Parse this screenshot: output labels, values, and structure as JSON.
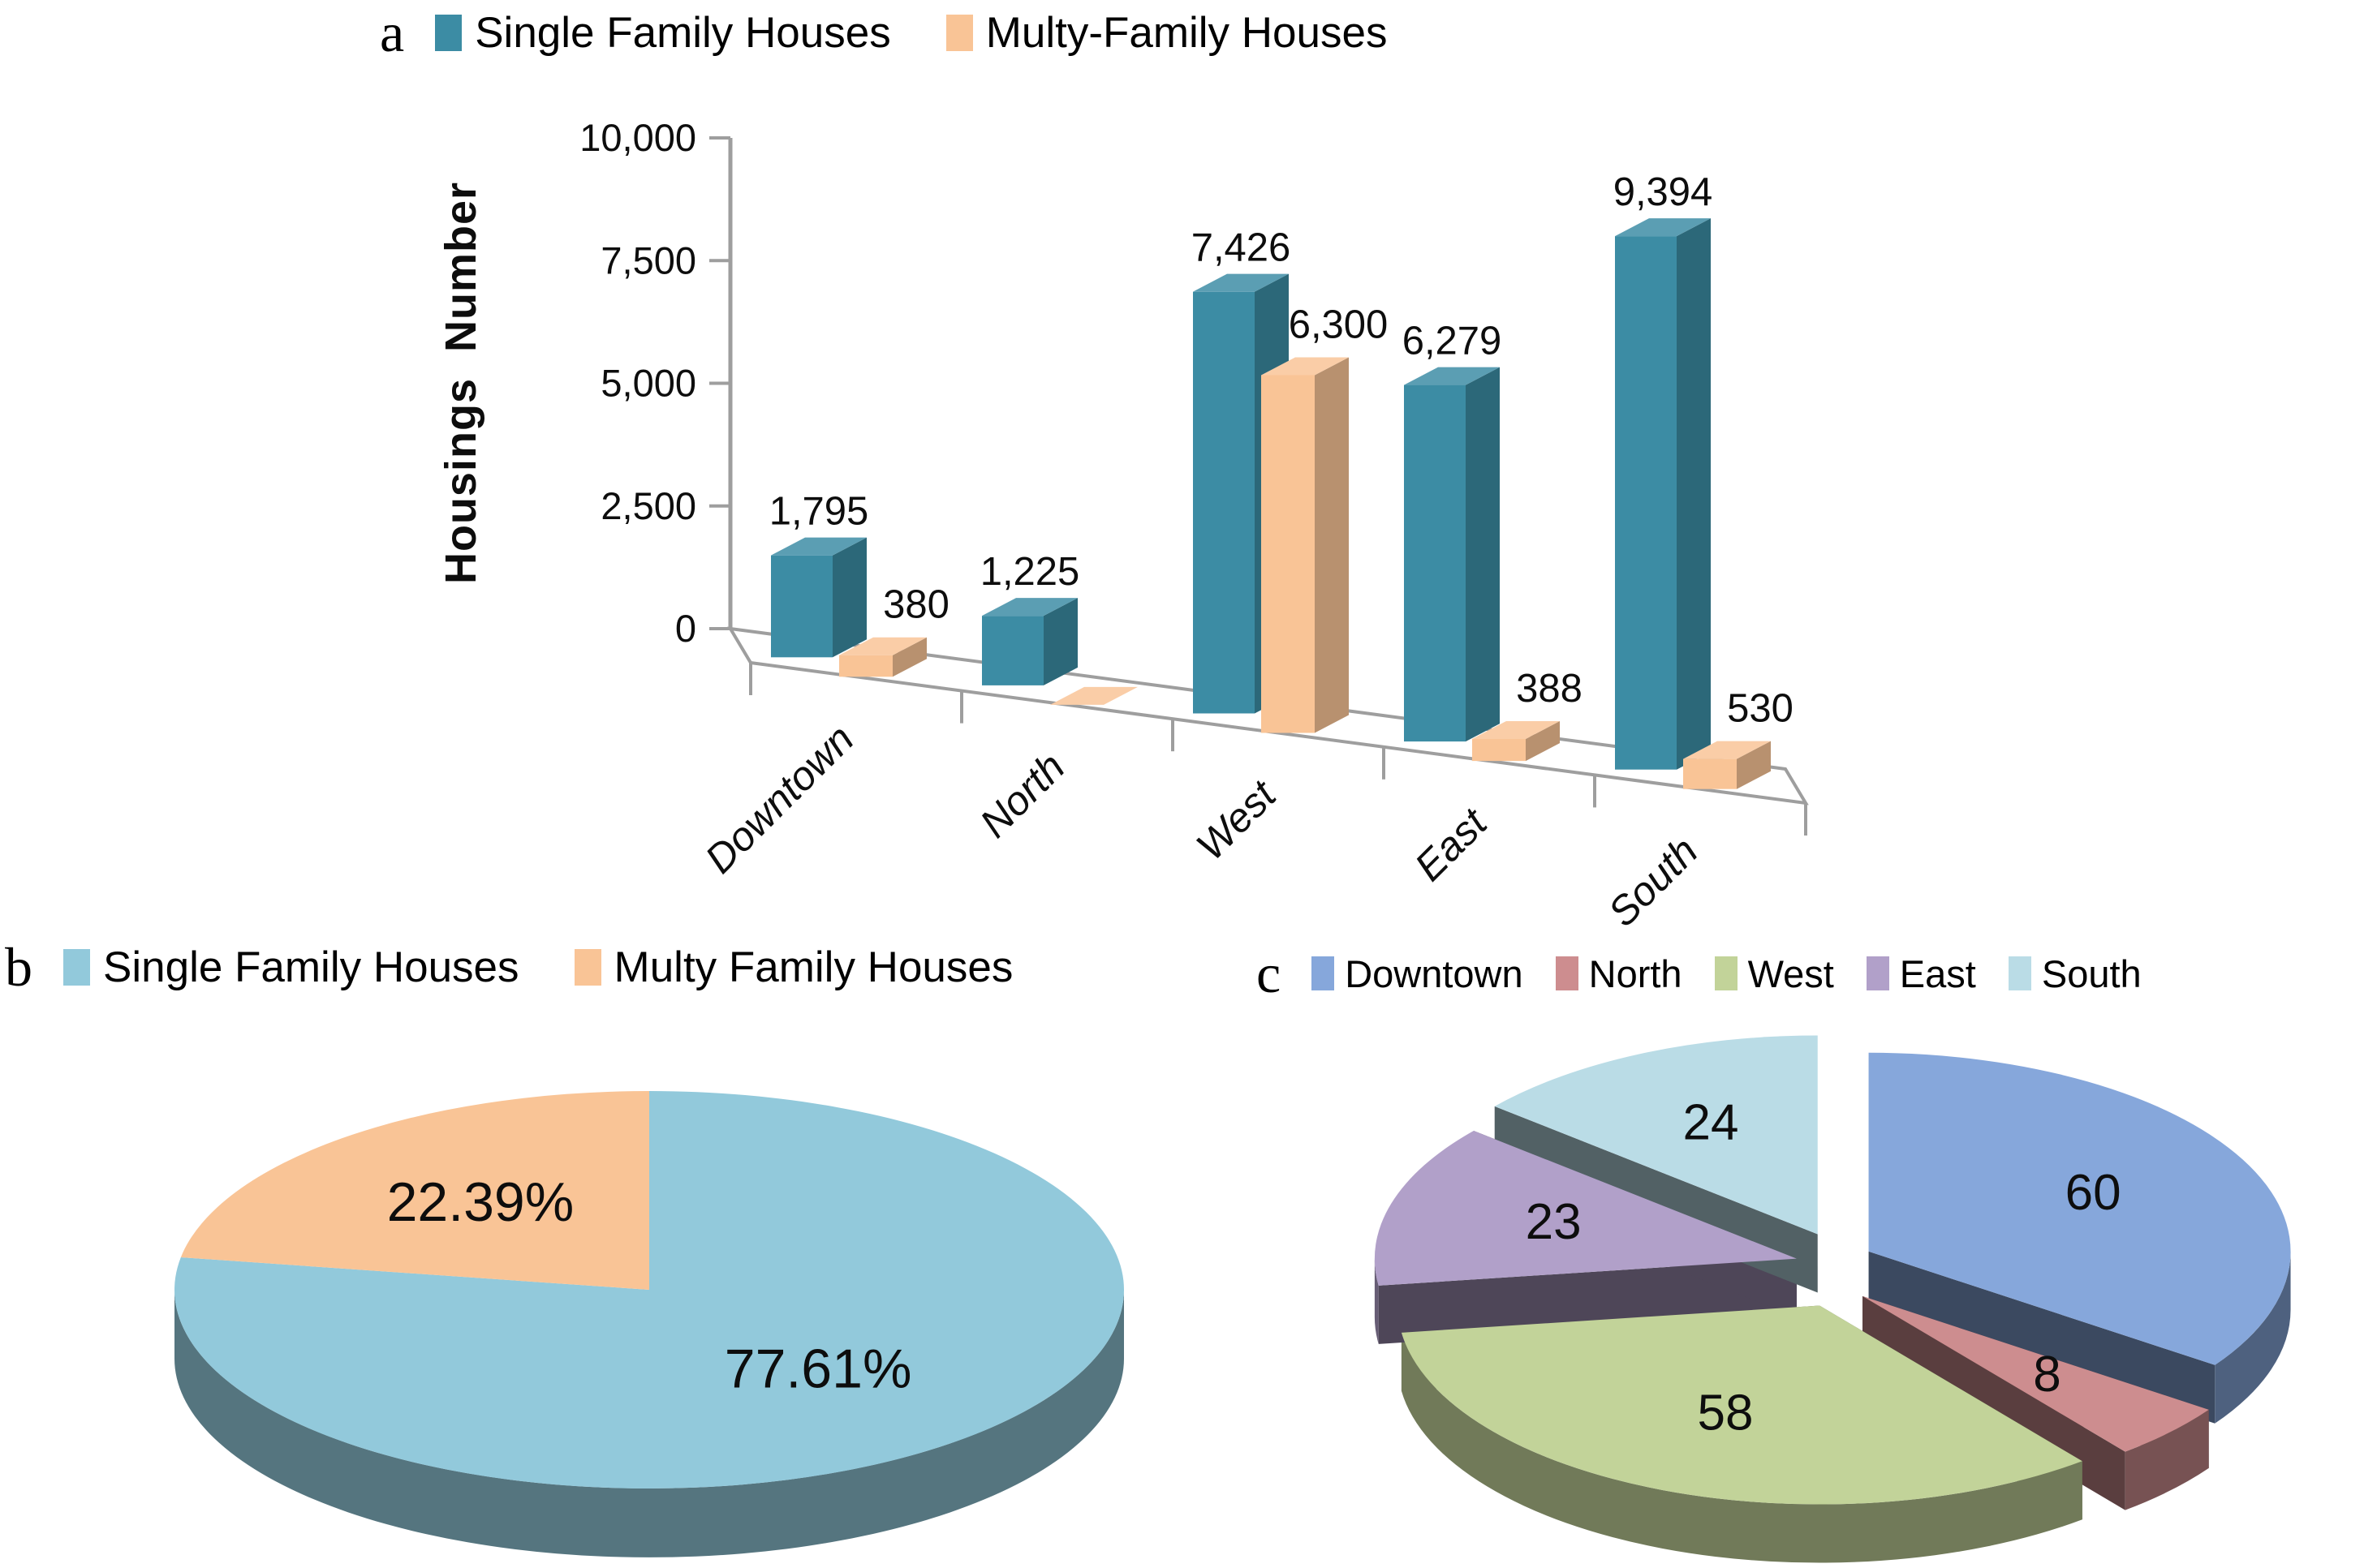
{
  "figure": {
    "panel_a": {
      "panel_label": "a",
      "legend": [
        {
          "label": "Single Family Houses",
          "color": "#3C8CA4"
        },
        {
          "label": "Multy-Family Houses",
          "color": "#F9C496"
        }
      ],
      "y_axis_title": "Housings Number"
    },
    "panel_b": {
      "panel_label": "b",
      "legend": [
        {
          "label": "Single Family Houses",
          "color": "#92C9DB"
        },
        {
          "label": "Multy Family Houses",
          "color": "#F9C496"
        }
      ]
    },
    "panel_c": {
      "panel_label": "c",
      "legend": [
        {
          "label": "Downtown",
          "color": "#86A7DB"
        },
        {
          "label": "North",
          "color": "#CD8D8F"
        },
        {
          "label": "West",
          "color": "#C2D399"
        },
        {
          "label": "East",
          "color": "#B1A0C9"
        },
        {
          "label": "South",
          "color": "#BADCE6"
        }
      ]
    }
  },
  "chart_data": [
    {
      "id": "a",
      "type": "bar",
      "projection": "3d",
      "title": "",
      "xlabel": "",
      "ylabel": "Housings Number",
      "ylim": [
        0,
        10000
      ],
      "grid": false,
      "legend_position": "top",
      "categories": [
        "Downtown",
        "North",
        "West",
        "East",
        "South"
      ],
      "yticks": [
        {
          "value": 0,
          "label": "0"
        },
        {
          "value": 2500,
          "label": "2,500"
        },
        {
          "value": 5000,
          "label": "5,000"
        },
        {
          "value": 7500,
          "label": "7,500"
        },
        {
          "value": 10000,
          "label": "10,000"
        }
      ],
      "series": [
        {
          "name": "Single Family Houses",
          "color": "#3C8CA4",
          "values": [
            1795,
            1225,
            7426,
            6279,
            9394
          ],
          "labels": [
            "1,795",
            "1,225",
            "7,426",
            "6,279",
            "9,394"
          ]
        },
        {
          "name": "Multy-Family Houses",
          "color": "#F9C496",
          "values": [
            380,
            0,
            6300,
            388,
            530
          ],
          "labels": [
            "380",
            null,
            "6,300",
            "388",
            "530"
          ]
        }
      ]
    },
    {
      "id": "b",
      "type": "pie",
      "projection": "3d",
      "exploded": false,
      "start_angle_deg": 0,
      "direction": "clockwise",
      "legend_position": "top",
      "slices": [
        {
          "label": "Single Family Houses",
          "value": 77.61,
          "display": "77.61%",
          "color": "#92C9DB"
        },
        {
          "label": "Multy Family Houses",
          "value": 22.39,
          "display": "22.39%",
          "color": "#F9C496"
        }
      ]
    },
    {
      "id": "c",
      "type": "pie",
      "projection": "3d",
      "exploded": true,
      "start_angle_deg": 0,
      "direction": "clockwise",
      "legend_position": "top",
      "slices": [
        {
          "label": "Downtown",
          "value": 60,
          "display": "60",
          "color": "#86A7DB"
        },
        {
          "label": "North",
          "value": 8,
          "display": "8",
          "color": "#CD8D8F"
        },
        {
          "label": "West",
          "value": 58,
          "display": "58",
          "color": "#C2D399"
        },
        {
          "label": "East",
          "value": 23,
          "display": "23",
          "color": "#B1A0C9"
        },
        {
          "label": "South",
          "value": 24,
          "display": "24",
          "color": "#BADCE6"
        }
      ]
    }
  ]
}
